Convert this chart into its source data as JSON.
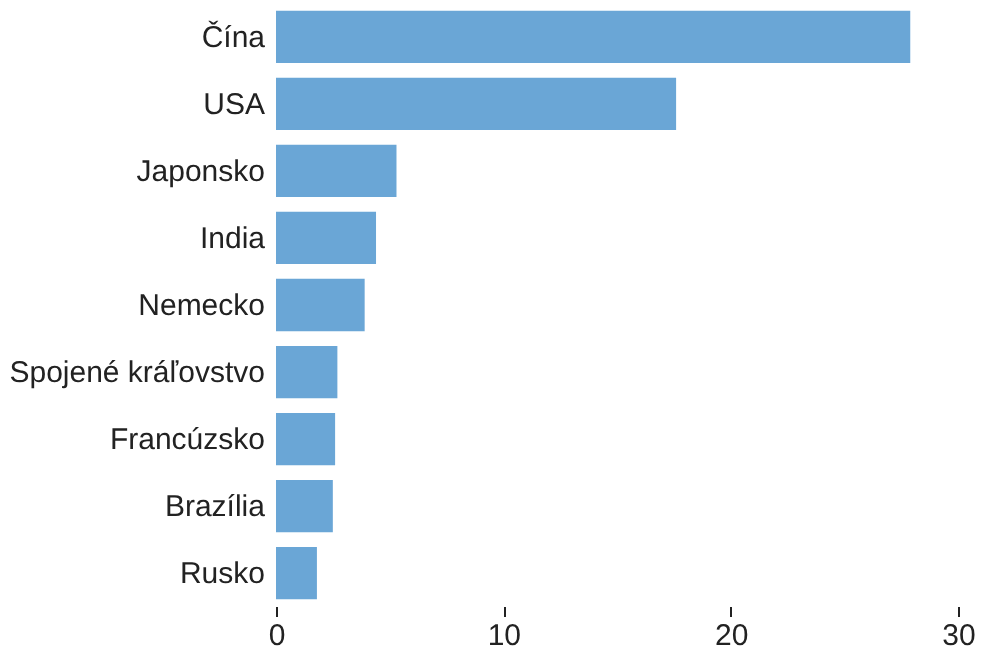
{
  "chart_data": {
    "type": "bar",
    "orientation": "horizontal",
    "categories": [
      "Čína",
      "USA",
      "Japonsko",
      "India",
      "Nemecko",
      "Spojené kráľovstvo",
      "Francúzsko",
      "Brazília",
      "Rusko"
    ],
    "values": [
      27.9,
      17.6,
      5.3,
      4.4,
      3.9,
      2.7,
      2.6,
      2.5,
      1.8
    ],
    "color": "#6aa6d6",
    "xlim": [
      0,
      30
    ],
    "xticks": [
      0,
      10,
      20,
      30
    ],
    "grid": false
  }
}
